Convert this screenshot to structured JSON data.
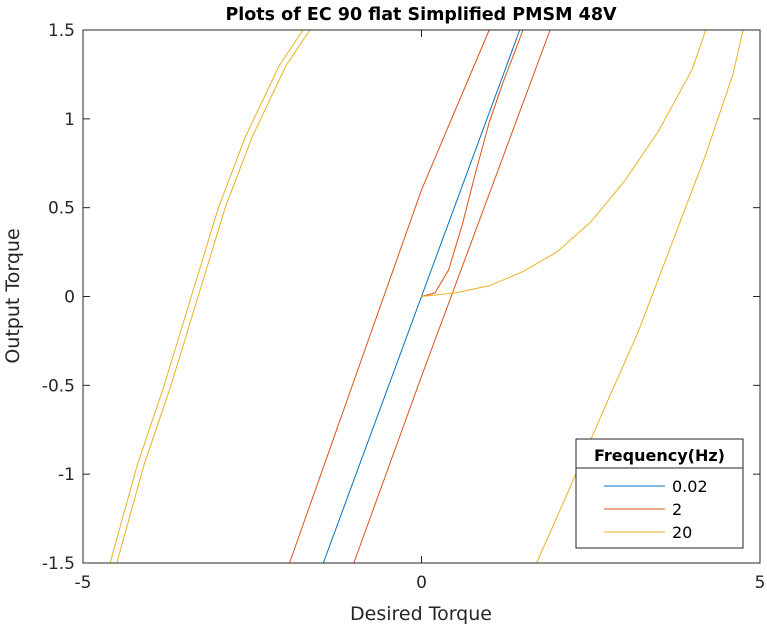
{
  "chart_data": {
    "type": "line",
    "title": "Plots of EC 90 flat Simplified PMSM 48V",
    "xlabel": "Desired Torque",
    "ylabel": "Output Torque",
    "xlim": [
      -5,
      5
    ],
    "ylim": [
      -1.5,
      1.5
    ],
    "xticks": [
      -5,
      0,
      5
    ],
    "xtick_labels": [
      "-5",
      "0",
      "5"
    ],
    "yticks": [
      -1.5,
      -1,
      -0.5,
      0,
      0.5,
      1,
      1.5
    ],
    "ytick_labels": [
      "-1.5",
      "-1",
      "-0.5",
      "0",
      "0.5",
      "1",
      "1.5"
    ],
    "grid": false,
    "legend": {
      "title": "Frequency(Hz)",
      "location": "bottom-right"
    },
    "series": [
      {
        "name": "0.02",
        "color": "#0072BD",
        "segments": [
          [
            [
              -1.45,
              -1.5
            ],
            [
              0,
              0
            ],
            [
              1.45,
              1.5
            ]
          ]
        ]
      },
      {
        "name": "2",
        "color": "#D95319",
        "segments": [
          [
            [
              -1.95,
              -1.5
            ],
            [
              0,
              0.6
            ],
            [
              1.0,
              1.5
            ]
          ],
          [
            [
              -1.0,
              -1.5
            ],
            [
              0,
              -0.45
            ],
            [
              1.9,
              1.5
            ]
          ],
          [
            [
              0,
              0
            ],
            [
              0.2,
              0.02
            ],
            [
              0.4,
              0.15
            ],
            [
              0.6,
              0.4
            ],
            [
              0.8,
              0.7
            ],
            [
              1.0,
              0.98
            ],
            [
              1.2,
              1.2
            ],
            [
              1.4,
              1.4
            ],
            [
              1.5,
              1.5
            ]
          ],
          [
            [
              -5,
              -1.5
            ],
            [
              -1.95,
              -1.5
            ]
          ],
          [
            [
              -1.0,
              -1.5
            ],
            [
              5,
              -1.5
            ]
          ]
        ]
      },
      {
        "name": "20",
        "color": "#EDB120",
        "segments": [
          [
            [
              -4.6,
              -1.5
            ],
            [
              -4.2,
              -0.95
            ],
            [
              -3.8,
              -0.5
            ],
            [
              -3.4,
              0
            ],
            [
              -3.0,
              0.5
            ],
            [
              -2.6,
              0.9
            ],
            [
              -2.1,
              1.3
            ],
            [
              -1.75,
              1.5
            ]
          ],
          [
            [
              -4.5,
              -1.5
            ],
            [
              -4.1,
              -0.95
            ],
            [
              -3.7,
              -0.5
            ],
            [
              -3.3,
              0
            ],
            [
              -2.9,
              0.5
            ],
            [
              -2.5,
              0.9
            ],
            [
              -2.0,
              1.3
            ],
            [
              -1.65,
              1.5
            ]
          ],
          [
            [
              0,
              0
            ],
            [
              0.5,
              0.02
            ],
            [
              1.0,
              0.06
            ],
            [
              1.5,
              0.14
            ],
            [
              2.0,
              0.25
            ],
            [
              2.5,
              0.42
            ],
            [
              3.0,
              0.65
            ],
            [
              3.5,
              0.93
            ],
            [
              4.0,
              1.28
            ],
            [
              4.2,
              1.5
            ]
          ],
          [
            [
              1.7,
              -1.5
            ],
            [
              2.2,
              -1.07
            ],
            [
              2.7,
              -0.63
            ],
            [
              3.2,
              -0.2
            ],
            [
              3.7,
              0.3
            ],
            [
              4.2,
              0.8
            ],
            [
              4.6,
              1.25
            ],
            [
              4.75,
              1.5
            ]
          ],
          [
            [
              -1.7,
              1.5
            ],
            [
              5,
              1.5
            ]
          ],
          [
            [
              -5,
              -1.5
            ],
            [
              1.7,
              -1.5
            ]
          ]
        ]
      }
    ]
  }
}
